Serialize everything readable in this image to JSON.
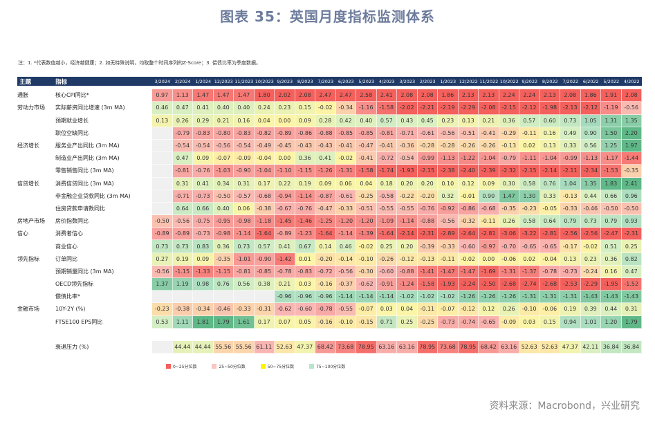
{
  "title": "图表 35：英国月度指标监测体系",
  "note": "注：1. *代表数值越小，经济越健康；2. 如无特殊说明，均取整个时间序列的Z-Score；3. 偿债比率为季度数据。",
  "source": "资料来源：Macrobond，兴业研究",
  "colors": {
    "header": "#1f3a66",
    "deep_red": "#f4605c",
    "light_red": "#f9bcb8",
    "yellow": "#fdf59c",
    "light_green": "#b9e4cc",
    "green": "#5fb887",
    "blank": "#f0f0f0"
  },
  "chart_data": {
    "type": "heatmap",
    "headers": {
      "theme": "主题",
      "indicator": "指标"
    },
    "columns": [
      "3/2024",
      "2/2024",
      "1/2024",
      "12/2023",
      "11/2023",
      "10/2023",
      "9/2023",
      "8/2023",
      "7/2023",
      "6/2023",
      "5/2023",
      "4/2023",
      "3/2023",
      "2/2023",
      "1/2023",
      "12/2022",
      "11/2022",
      "10/2022",
      "9/2022",
      "8/2022",
      "7/2022",
      "6/2022",
      "5/2022",
      "4/2022"
    ],
    "rows": [
      {
        "theme": "通胀",
        "name": "核心CPI同比*",
        "inverse": true,
        "values": [
          0.97,
          1.13,
          1.47,
          1.47,
          1.47,
          1.8,
          2.02,
          2.08,
          2.47,
          2.47,
          2.58,
          2.41,
          2.08,
          2.08,
          1.86,
          2.13,
          2.13,
          2.24,
          2.24,
          2.13,
          2.08,
          1.86,
          1.91,
          2.08
        ]
      },
      {
        "theme": "劳动力市场",
        "name": "实际薪资同比增速 (3m MA)",
        "values": [
          0.46,
          0.47,
          0.41,
          0.4,
          0.4,
          0.24,
          0.23,
          0.15,
          -0.02,
          -0.34,
          -1.16,
          -1.58,
          -2.02,
          -2.21,
          -2.19,
          -2.29,
          -2.08,
          -2.15,
          -2.12,
          -1.98,
          -2.13,
          -2.12,
          -1.19,
          -0.56
        ]
      },
      {
        "theme": "",
        "name": "预期就业增长",
        "values": [
          0.13,
          0.26,
          0.29,
          0.21,
          0.16,
          0.04,
          0.0,
          0.09,
          0.28,
          0.42,
          0.4,
          0.57,
          0.43,
          0.45,
          0.23,
          0.13,
          0.21,
          0.36,
          0.57,
          0.6,
          0.73,
          1.05,
          1.31,
          1.35
        ]
      },
      {
        "theme": "",
        "name": "职位空缺同比",
        "values": [
          null,
          -0.79,
          -0.83,
          -0.8,
          -0.83,
          -0.82,
          -0.89,
          -0.86,
          -0.88,
          -0.85,
          -0.85,
          -0.81,
          -0.71,
          -0.61,
          -0.56,
          -0.51,
          -0.41,
          -0.29,
          -0.11,
          0.16,
          0.49,
          0.9,
          1.5,
          2.2
        ]
      },
      {
        "theme": "经济增长",
        "name": "服务业产出同比 (3m MA)",
        "values": [
          null,
          -0.54,
          -0.54,
          -0.56,
          -0.54,
          -0.49,
          -0.45,
          -0.43,
          -0.43,
          -0.41,
          -0.47,
          -0.41,
          -0.36,
          -0.28,
          -0.28,
          -0.26,
          -0.26,
          -0.13,
          0.02,
          0.13,
          0.33,
          0.56,
          1.25,
          1.97
        ]
      },
      {
        "theme": "",
        "name": "制造业产出同比 (3m MA)",
        "values": [
          null,
          0.47,
          0.09,
          -0.07,
          -0.09,
          -0.04,
          0.0,
          0.36,
          0.41,
          -0.02,
          -0.41,
          -0.72,
          -0.54,
          -0.99,
          -1.13,
          -1.22,
          -1.04,
          -0.79,
          -1.11,
          -1.04,
          -0.99,
          -1.13,
          -1.17,
          -1.44
        ]
      },
      {
        "theme": "",
        "name": "零售销售同比 (3m MA)",
        "values": [
          null,
          -0.81,
          -0.76,
          -1.03,
          -0.9,
          -1.04,
          -1.1,
          -1.15,
          -1.26,
          -1.31,
          -1.58,
          -1.74,
          -1.93,
          -2.15,
          -2.38,
          -2.4,
          -2.39,
          -2.32,
          -2.15,
          -2.14,
          -2.11,
          -2.34,
          -1.53,
          -0.35
        ]
      },
      {
        "theme": "信贷增长",
        "name": "消费信贷同比 (3m MA)",
        "values": [
          null,
          0.31,
          0.41,
          0.34,
          0.31,
          0.17,
          0.22,
          0.19,
          0.09,
          0.06,
          0.04,
          0.18,
          0.2,
          0.2,
          0.1,
          0.12,
          0.09,
          0.3,
          0.58,
          0.76,
          1.04,
          1.35,
          1.83,
          2.41
        ]
      },
      {
        "theme": "",
        "name": "非金融企业贷款同比 (3m MA)",
        "values": [
          null,
          -0.71,
          -0.73,
          -0.5,
          -0.57,
          -0.68,
          -0.94,
          -1.14,
          -0.87,
          -0.61,
          -0.25,
          -0.58,
          -0.22,
          -0.2,
          0.32,
          -0.01,
          0.9,
          1.47,
          1.3,
          0.33,
          -0.13,
          0.44,
          0.66,
          0.96
        ]
      },
      {
        "theme": "",
        "name": "住房贷款申请数同比",
        "values": [
          null,
          0.64,
          0.66,
          0.4,
          0.06,
          -0.38,
          -0.67,
          -0.76,
          -0.47,
          -0.33,
          -0.51,
          -0.55,
          -0.55,
          -0.76,
          -0.92,
          -0.86,
          -0.68,
          -0.35,
          -0.23,
          -0.05,
          -0.33,
          -0.46,
          -0.5,
          -0.5
        ]
      },
      {
        "theme": "房地产市场",
        "name": "房价指数同比",
        "values": [
          -0.5,
          -0.56,
          -0.75,
          -0.95,
          -0.98,
          -1.18,
          -1.45,
          -1.46,
          -1.25,
          -1.2,
          -1.2,
          -1.09,
          -1.14,
          -0.88,
          -0.56,
          -0.32,
          -0.11,
          0.26,
          0.58,
          0.64,
          0.79,
          0.73,
          0.79,
          0.93
        ]
      },
      {
        "theme": "信心",
        "name": "消费者信心",
        "values": [
          -0.89,
          -0.89,
          -0.73,
          -0.98,
          -1.14,
          -1.64,
          -0.89,
          -1.23,
          -1.64,
          -1.14,
          -1.39,
          -1.64,
          -2.14,
          -2.31,
          -2.89,
          -2.64,
          -2.81,
          -3.06,
          -3.22,
          -2.81,
          -2.56,
          -2.56,
          -2.47,
          -2.31
        ]
      },
      {
        "theme": "",
        "name": "商业信心",
        "values": [
          0.73,
          0.73,
          0.83,
          0.36,
          0.73,
          0.57,
          0.41,
          0.67,
          0.14,
          0.46,
          -0.02,
          0.25,
          0.2,
          -0.39,
          -0.33,
          -0.6,
          -0.97,
          -0.7,
          -0.65,
          -0.65,
          -0.17,
          -0.02,
          0.51,
          0.25
        ]
      },
      {
        "theme": "领先指标",
        "name": "订单同比",
        "values": [
          0.27,
          0.19,
          0.09,
          -0.35,
          -1.01,
          -0.9,
          -1.42,
          0.01,
          -0.2,
          -0.14,
          -0.1,
          -0.26,
          -0.12,
          -0.13,
          -0.11,
          -0.02,
          0.0,
          -0.06,
          0.02,
          -0.04,
          0.13,
          0.23,
          0.36,
          0.82
        ]
      },
      {
        "theme": "",
        "name": "预期销量同比 (3m MA)",
        "values": [
          -0.56,
          -1.15,
          -1.33,
          -1.15,
          -0.81,
          -0.85,
          -0.78,
          -0.83,
          -0.72,
          -0.56,
          -0.3,
          -0.6,
          -0.88,
          -1.41,
          -1.47,
          -1.47,
          -1.69,
          -1.31,
          -1.37,
          -0.78,
          -0.73,
          -0.24,
          0.16,
          0.47
        ]
      },
      {
        "theme": "",
        "name": "OECD领先指标",
        "values": [
          1.37,
          1.19,
          0.98,
          0.76,
          0.56,
          0.38,
          0.21,
          0.03,
          -0.16,
          -0.37,
          -0.62,
          -0.91,
          -1.24,
          -1.58,
          -1.93,
          -2.24,
          -2.5,
          -2.68,
          -2.74,
          -2.68,
          -2.53,
          -2.29,
          -1.95,
          -1.52
        ]
      },
      {
        "theme": "",
        "name": "偿债比率*",
        "inverse": true,
        "values": [
          null,
          null,
          null,
          null,
          null,
          null,
          -0.96,
          -0.96,
          -0.96,
          -1.14,
          -1.14,
          -1.14,
          -1.02,
          -1.02,
          -1.02,
          -1.26,
          -1.26,
          -1.26,
          -1.31,
          -1.31,
          -1.31,
          -1.43,
          -1.43,
          -1.43
        ]
      },
      {
        "theme": "金融市场",
        "name": "10Y-2Y (%)",
        "values": [
          -0.23,
          -0.38,
          -0.34,
          -0.46,
          -0.33,
          -0.31,
          -0.62,
          -0.6,
          -0.78,
          -0.55,
          -0.07,
          0.03,
          0.04,
          -0.11,
          -0.07,
          -0.12,
          0.12,
          0.26,
          -0.1,
          -0.06,
          0.19,
          0.39,
          0.44,
          0.31
        ]
      },
      {
        "theme": "",
        "name": "FTSE100 EPS同比",
        "values": [
          0.53,
          1.11,
          1.81,
          1.79,
          1.61,
          0.17,
          0.07,
          0.05,
          -0.16,
          -0.1,
          -0.15,
          0.71,
          0.25,
          -0.25,
          -0.73,
          -0.74,
          -0.65,
          -0.09,
          0.03,
          0.15,
          0.94,
          1.01,
          1.2,
          1.79
        ]
      }
    ],
    "summary": {
      "name": "衰退压力 (%)",
      "values": [
        null,
        44.44,
        44.44,
        55.56,
        55.56,
        61.11,
        52.63,
        47.37,
        68.42,
        73.68,
        78.95,
        63.16,
        63.16,
        78.95,
        73.68,
        78.95,
        68.42,
        63.16,
        52.63,
        52.63,
        47.37,
        42.11,
        36.84,
        36.84
      ]
    },
    "legend": [
      {
        "label": "0~25分位数",
        "color": "#f4605c"
      },
      {
        "label": "25~50分位数",
        "color": "#f9c6c2"
      },
      {
        "label": "50~75分位数",
        "color": "#fff200"
      },
      {
        "label": "75~100分位数",
        "color": "#b9e4cc"
      }
    ]
  }
}
